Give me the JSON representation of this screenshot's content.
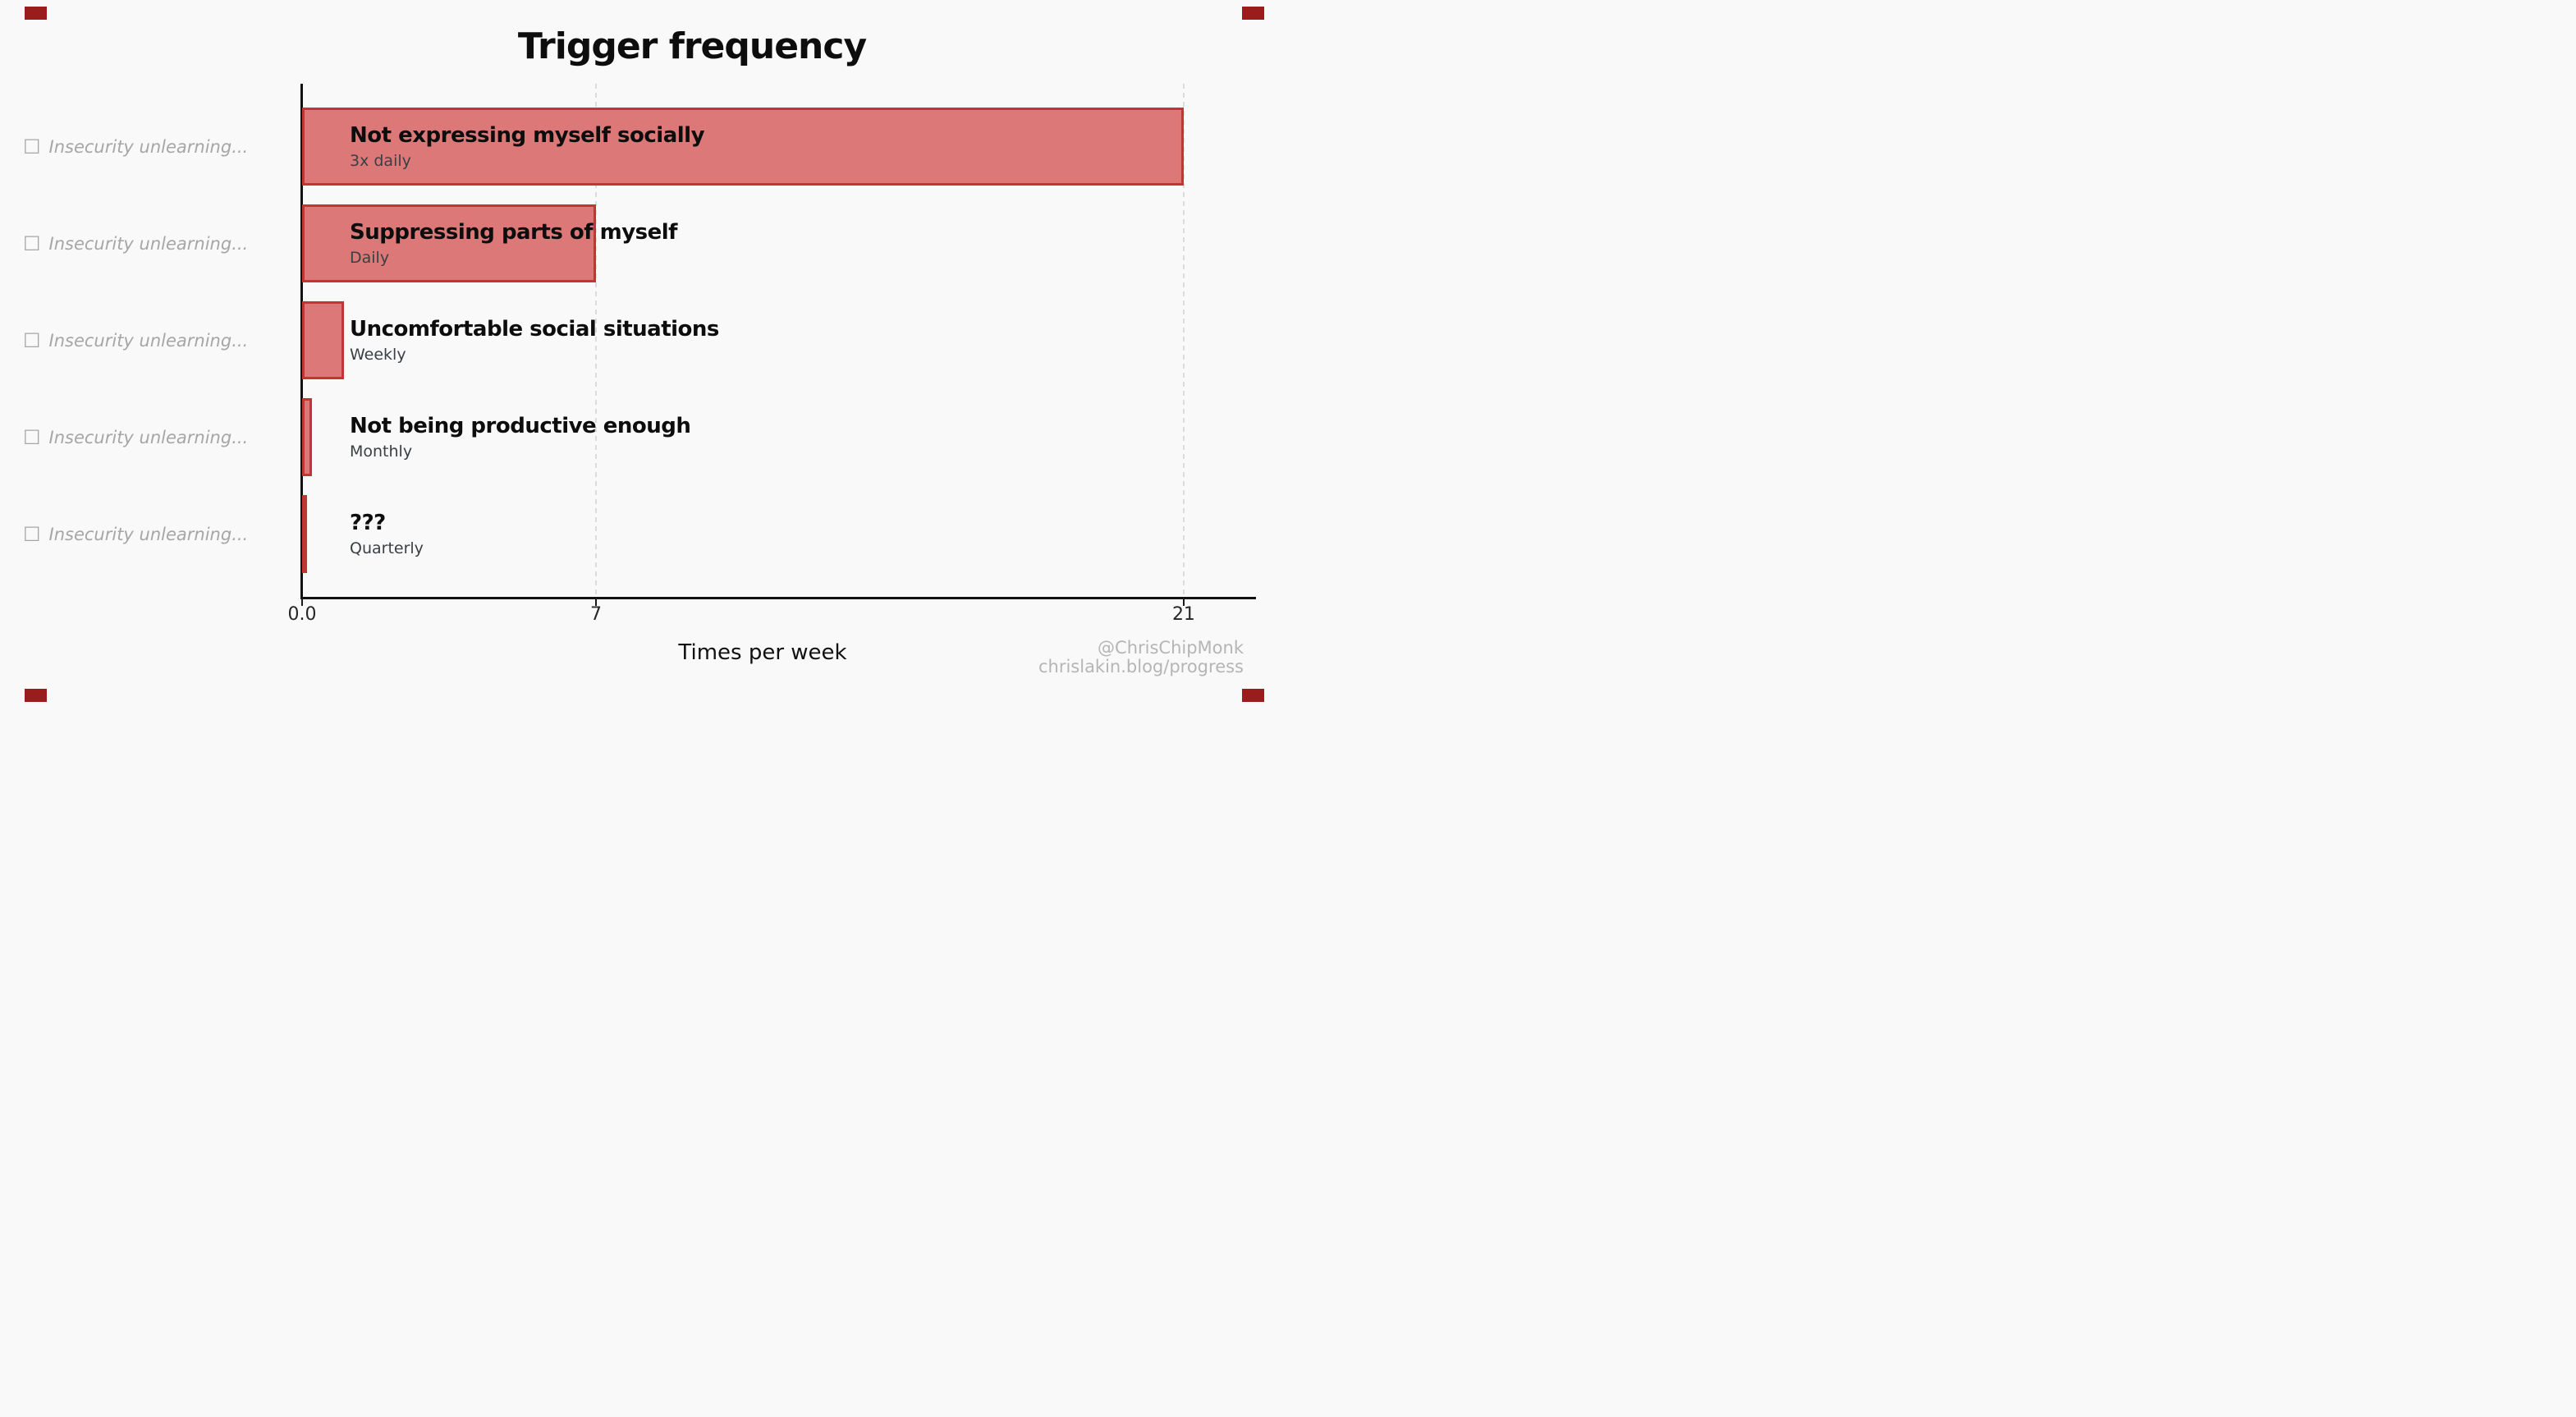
{
  "figure": {
    "title": "Trigger frequency",
    "background_color": "#f9f9f9",
    "corner_mark_color": "#9b1c1c",
    "watermark": {
      "line1": "@ChrisChipMonk",
      "line2": "chrislakin.blog/progress",
      "color": "#b5b5b5"
    }
  },
  "chart_data": {
    "type": "bar",
    "orientation": "horizontal",
    "title": "Trigger frequency",
    "xlabel": "Times per week",
    "xlim": [
      0,
      22.8
    ],
    "grid": "dashed vertical at 7 and 21",
    "gridlines": [
      7,
      21
    ],
    "legend": "none",
    "bar_fill_color": "#dd7878",
    "bar_border_color": "#c13535",
    "axis_color": "#111111",
    "xticks": [
      {
        "value": 0,
        "label": "0.0"
      },
      {
        "value": 7,
        "label": "7"
      },
      {
        "value": 21,
        "label": "21"
      }
    ],
    "y_label_box_glyph": "☐",
    "bars": [
      {
        "y_label": "Insecurity unlearning...",
        "label": "Not expressing myself socially",
        "sublabel": "3x daily",
        "value": 21
      },
      {
        "y_label": "Insecurity unlearning...",
        "label": "Suppressing parts of myself",
        "sublabel": "Daily",
        "value": 7
      },
      {
        "y_label": "Insecurity unlearning...",
        "label": "Uncomfortable social situations",
        "sublabel": "Weekly",
        "value": 1
      },
      {
        "y_label": "Insecurity unlearning...",
        "label": "Not being productive enough",
        "sublabel": "Monthly",
        "value": 0.23
      },
      {
        "y_label": "Insecurity unlearning...",
        "label": "???",
        "sublabel": "Quarterly",
        "value": 0.08
      }
    ]
  }
}
